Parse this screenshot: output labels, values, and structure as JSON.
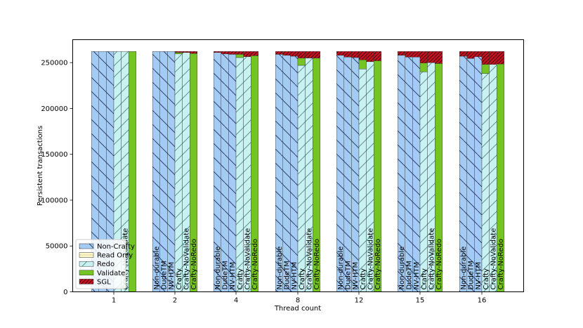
{
  "chart_data": {
    "type": "bar",
    "stacked": true,
    "xlabel": "Thread count",
    "ylabel": "Persistent transactions",
    "ylim": [
      0,
      275000
    ],
    "yticks": [
      0,
      50000,
      100000,
      150000,
      200000,
      250000
    ],
    "ytick_labels": [
      "0",
      "50000",
      "100000",
      "150000",
      "200000",
      "250000"
    ],
    "groups": [
      "1",
      "2",
      "4",
      "8",
      "12",
      "15",
      "16"
    ],
    "bar_names": [
      "Non-durable",
      "DudeTM",
      "NV-HTM",
      "Crafty",
      "Crafty-NoValidate",
      "Crafty-NoRedo"
    ],
    "bar_label_visibility": [
      [
        false,
        false,
        false,
        false,
        true,
        false
      ],
      [
        true,
        true,
        true,
        true,
        true,
        true
      ],
      [
        true,
        true,
        true,
        true,
        true,
        true
      ],
      [
        true,
        true,
        true,
        true,
        true,
        true
      ],
      [
        true,
        true,
        true,
        true,
        true,
        true
      ],
      [
        true,
        true,
        true,
        true,
        true,
        true
      ],
      [
        true,
        true,
        true,
        true,
        true,
        true
      ]
    ],
    "legend": {
      "placement": "lower-left",
      "entries": [
        "Non-Crafty",
        "Read Only",
        "Redo",
        "Validate",
        "SGL"
      ]
    },
    "grid": false,
    "colors": {
      "Non-Crafty": "#a4cbf3",
      "Read Only": "#fff8c8",
      "Redo": "#c8f2f2",
      "Validate": "#74c423",
      "SGL": "#c8101e"
    },
    "data": [
      [
        {
          "Non-Crafty": 262144
        },
        {
          "Non-Crafty": 262144
        },
        {
          "Non-Crafty": 262144
        },
        {
          "Redo": 262144
        },
        {
          "Redo": 262144
        },
        {
          "Validate": 262144
        }
      ],
      [
        {
          "Non-Crafty": 262144
        },
        {
          "Non-Crafty": 262144
        },
        {
          "Non-Crafty": 262144
        },
        {
          "Redo": 259500,
          "Validate": 1500,
          "SGL": 1144
        },
        {
          "Redo": 261000,
          "SGL": 1144
        },
        {
          "Validate": 260000,
          "SGL": 2144
        }
      ],
      [
        {
          "Non-Crafty": 261000,
          "SGL": 1144
        },
        {
          "Non-Crafty": 259500,
          "SGL": 2644
        },
        {
          "Non-Crafty": 259000,
          "SGL": 3144
        },
        {
          "Redo": 255500,
          "Validate": 3500,
          "SGL": 3144
        },
        {
          "Redo": 256500,
          "SGL": 5644
        },
        {
          "Validate": 257500,
          "SGL": 4644
        }
      ],
      [
        {
          "Non-Crafty": 259000,
          "SGL": 3144
        },
        {
          "Non-Crafty": 258000,
          "SGL": 4144
        },
        {
          "Non-Crafty": 257000,
          "SGL": 5144
        },
        {
          "Redo": 247000,
          "Validate": 8000,
          "SGL": 7144
        },
        {
          "Redo": 255000,
          "SGL": 7144
        },
        {
          "Validate": 255000,
          "SGL": 7144
        }
      ],
      [
        {
          "Non-Crafty": 258000,
          "SGL": 4144
        },
        {
          "Non-Crafty": 256000,
          "SGL": 6144
        },
        {
          "Non-Crafty": 255500,
          "SGL": 6644
        },
        {
          "Redo": 243000,
          "Validate": 10000,
          "SGL": 9144
        },
        {
          "Redo": 251000,
          "SGL": 11144
        },
        {
          "Validate": 252000,
          "SGL": 10144
        }
      ],
      [
        {
          "Non-Crafty": 258000,
          "SGL": 4144
        },
        {
          "Non-Crafty": 256000,
          "SGL": 6144
        },
        {
          "Non-Crafty": 256000,
          "SGL": 6144
        },
        {
          "Redo": 240000,
          "Validate": 9500,
          "SGL": 12644
        },
        {
          "Redo": 250000,
          "SGL": 12144
        },
        {
          "Validate": 249000,
          "SGL": 13144
        }
      ],
      [
        {
          "Non-Crafty": 257000,
          "SGL": 5144
        },
        {
          "Non-Crafty": 254500,
          "SGL": 7644
        },
        {
          "Non-Crafty": 256500,
          "SGL": 5644
        },
        {
          "Redo": 238000,
          "Validate": 10000,
          "SGL": 14144
        },
        {
          "Redo": 248000,
          "SGL": 14144
        },
        {
          "Validate": 248500,
          "SGL": 13644
        }
      ]
    ]
  }
}
